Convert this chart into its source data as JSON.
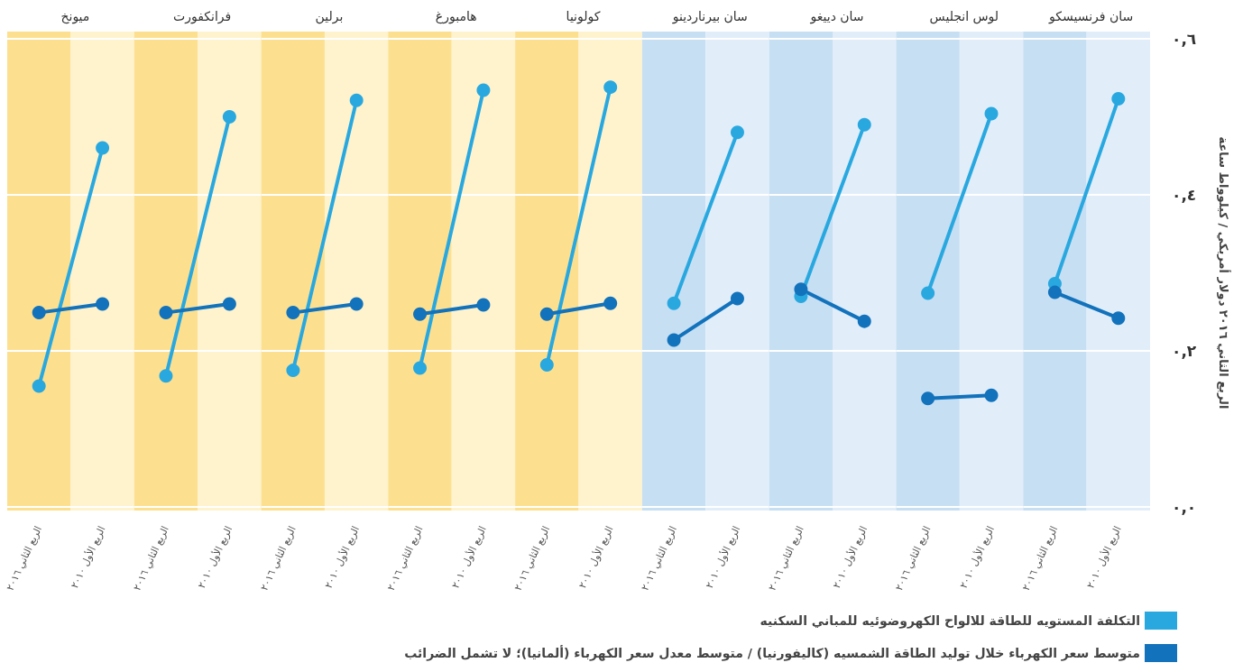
{
  "chart_data": [
    {
      "type": "line",
      "title": "ميونخ",
      "categories": [
        "الربع الثاني ٢٠١٦",
        "الربع الأول ٢٠١٠"
      ],
      "series": [
        {
          "color": "#29a8e0",
          "values": [
            0.155,
            0.46
          ]
        },
        {
          "color": "#1272bb",
          "values": [
            0.249,
            0.26
          ]
        }
      ],
      "ylim": [
        0,
        0.6
      ],
      "yticks": [
        0,
        0.2,
        0.4,
        0.6
      ],
      "tick_labels": "x",
      "grid": "y",
      "marker": "circle",
      "legend": false,
      "bands": [
        {
          "axis": "x",
          "from": "الربع الثاني ٢٠١٦",
          "to": "الربع الثاني ٢٠١٦",
          "color": "#fde08f"
        },
        {
          "axis": "x",
          "from": "الربع الأول ٢٠١٠",
          "to": "الربع الأول ٢٠١٠",
          "color": "#fef3cd"
        }
      ]
    },
    {
      "type": "line",
      "title": "فرانكفورت",
      "categories": [
        "الربع الثاني ٢٠١٦",
        "الربع الأول ٢٠١٠"
      ],
      "series": [
        {
          "color": "#29a8e0",
          "values": [
            0.168,
            0.5
          ]
        },
        {
          "color": "#1272bb",
          "values": [
            0.249,
            0.26
          ]
        }
      ],
      "ylim": [
        0,
        0.6
      ],
      "yticks": [
        0,
        0.2,
        0.4,
        0.6
      ],
      "tick_labels": "x",
      "grid": "y",
      "marker": "circle",
      "legend": false,
      "bands": [
        {
          "axis": "x",
          "from": "الربع الثاني ٢٠١٦",
          "to": "الربع الثاني ٢٠١٦",
          "color": "#fde08f"
        },
        {
          "axis": "x",
          "from": "الربع الأول ٢٠١٠",
          "to": "الربع الأول ٢٠١٠",
          "color": "#fef3cd"
        }
      ]
    },
    {
      "type": "line",
      "title": "برلين",
      "categories": [
        "الربع الثاني ٢٠١٦",
        "الربع الأول ٢٠١٠"
      ],
      "series": [
        {
          "color": "#29a8e0",
          "values": [
            0.175,
            0.521
          ]
        },
        {
          "color": "#1272bb",
          "values": [
            0.249,
            0.26
          ]
        }
      ],
      "ylim": [
        0,
        0.6
      ],
      "yticks": [
        0,
        0.2,
        0.4,
        0.6
      ],
      "tick_labels": "x",
      "grid": "y",
      "marker": "circle",
      "legend": false,
      "bands": [
        {
          "axis": "x",
          "from": "الربع الثاني ٢٠١٦",
          "to": "الربع الثاني ٢٠١٦",
          "color": "#fde08f"
        },
        {
          "axis": "x",
          "from": "الربع الأول ٢٠١٠",
          "to": "الربع الأول ٢٠١٠",
          "color": "#fef3cd"
        }
      ]
    },
    {
      "type": "line",
      "title": "هامبورغ",
      "categories": [
        "الربع الثاني ٢٠١٦",
        "الربع الأول ٢٠١٠"
      ],
      "series": [
        {
          "color": "#29a8e0",
          "values": [
            0.178,
            0.534
          ]
        },
        {
          "color": "#1272bb",
          "values": [
            0.247,
            0.259
          ]
        }
      ],
      "ylim": [
        0,
        0.6
      ],
      "yticks": [
        0,
        0.2,
        0.4,
        0.6
      ],
      "tick_labels": "x",
      "grid": "y",
      "marker": "circle",
      "legend": false,
      "bands": [
        {
          "axis": "x",
          "from": "الربع الثاني ٢٠١٦",
          "to": "الربع الثاني ٢٠١٦",
          "color": "#fde08f"
        },
        {
          "axis": "x",
          "from": "الربع الأول ٢٠١٠",
          "to": "الربع الأول ٢٠١٠",
          "color": "#fef3cd"
        }
      ]
    },
    {
      "type": "line",
      "title": "كولونيا",
      "categories": [
        "الربع الثاني ٢٠١٦",
        "الربع الأول ٢٠١٠"
      ],
      "series": [
        {
          "color": "#29a8e0",
          "values": [
            0.182,
            0.538
          ]
        },
        {
          "color": "#1272bb",
          "values": [
            0.247,
            0.261
          ]
        }
      ],
      "ylim": [
        0,
        0.6
      ],
      "yticks": [
        0,
        0.2,
        0.4,
        0.6
      ],
      "tick_labels": "x",
      "grid": "y",
      "marker": "circle",
      "legend": false,
      "bands": [
        {
          "axis": "x",
          "from": "الربع الثاني ٢٠١٦",
          "to": "الربع الثاني ٢٠١٦",
          "color": "#fde08f"
        },
        {
          "axis": "x",
          "from": "الربع الأول ٢٠١٠",
          "to": "الربع الأول ٢٠١٠",
          "color": "#fef3cd"
        }
      ]
    },
    {
      "type": "line",
      "title": "سان بيرناردينو",
      "categories": [
        "الربع الثاني ٢٠١٦",
        "الربع الأول ٢٠١٠"
      ],
      "series": [
        {
          "color": "#29a8e0",
          "values": [
            0.261,
            0.48
          ]
        },
        {
          "color": "#1272bb",
          "values": [
            0.214,
            0.267
          ]
        }
      ],
      "ylim": [
        0,
        0.6
      ],
      "yticks": [
        0,
        0.2,
        0.4,
        0.6
      ],
      "tick_labels": "x",
      "grid": "y",
      "marker": "circle",
      "legend": false,
      "bands": [
        {
          "axis": "x",
          "from": "الربع الثاني ٢٠١٦",
          "to": "الربع الثاني ٢٠١٦",
          "color": "#c6dff3"
        },
        {
          "axis": "x",
          "from": "الربع الأول ٢٠١٠",
          "to": "الربع الأول ٢٠١٠",
          "color": "#e1eefa"
        }
      ]
    },
    {
      "type": "line",
      "title": "سان دييغو",
      "categories": [
        "الربع الثاني ٢٠١٦",
        "الربع الأول ٢٠١٠"
      ],
      "series": [
        {
          "color": "#29a8e0",
          "values": [
            0.27,
            0.49
          ]
        },
        {
          "color": "#1272bb",
          "values": [
            0.279,
            0.238
          ]
        }
      ],
      "ylim": [
        0,
        0.6
      ],
      "yticks": [
        0,
        0.2,
        0.4,
        0.6
      ],
      "tick_labels": "x",
      "grid": "y",
      "marker": "circle",
      "legend": false,
      "bands": [
        {
          "axis": "x",
          "from": "الربع الثاني ٢٠١٦",
          "to": "الربع الثاني ٢٠١٦",
          "color": "#c6dff3"
        },
        {
          "axis": "x",
          "from": "الربع الأول ٢٠١٠",
          "to": "الربع الأول ٢٠١٠",
          "color": "#e1eefa"
        }
      ]
    },
    {
      "type": "line",
      "title": "لوس انجليس",
      "categories": [
        "الربع الثاني ٢٠١٦",
        "الربع الأول ٢٠١٠"
      ],
      "series": [
        {
          "color": "#29a8e0",
          "values": [
            0.274,
            0.504
          ]
        },
        {
          "color": "#1272bb",
          "values": [
            0.139,
            0.143
          ]
        }
      ],
      "ylim": [
        0,
        0.6
      ],
      "yticks": [
        0,
        0.2,
        0.4,
        0.6
      ],
      "tick_labels": "x",
      "grid": "y",
      "marker": "circle",
      "legend": false,
      "bands": [
        {
          "axis": "x",
          "from": "الربع الثاني ٢٠١٦",
          "to": "الربع الثاني ٢٠١٦",
          "color": "#c6dff3"
        },
        {
          "axis": "x",
          "from": "الربع الأول ٢٠١٠",
          "to": "الربع الأول ٢٠١٠",
          "color": "#e1eefa"
        }
      ]
    },
    {
      "type": "line",
      "title": "سان فرنسيسكو",
      "ylabel": "الربع الثاني ٢٠١٦ دولار أمريكي / كيلوواط ساعة",
      "categories": [
        "الربع الثاني ٢٠١٦",
        "الربع الأول ٢٠١٠"
      ],
      "series": [
        {
          "name": "التكلفة المستويه للطاقة للالواح الكهروضوئيه للمباني السكنيه",
          "color": "#29a8e0",
          "values": [
            0.286,
            0.523
          ]
        },
        {
          "name": "متوسط سعر الكهرباء خلال توليد الطاقة الشمسيه (كاليفورنيا) / متوسط معدل سعر الكهرباء (ألمانيا)؛ لا تشمل الضرائب",
          "color": "#1272bb",
          "values": [
            0.275,
            0.242
          ]
        }
      ],
      "ylim": [
        0,
        0.6
      ],
      "yticks": [
        {
          "value": 0,
          "label": "٠,٠"
        },
        {
          "value": 0.2,
          "label": "٠,٢"
        },
        {
          "value": 0.4,
          "label": "٠,٤"
        },
        {
          "value": 0.6,
          "label": "٠,٦"
        }
      ],
      "grid": "y",
      "marker": "circle",
      "legend": "bottom",
      "bands": [
        {
          "axis": "x",
          "from": "الربع الثاني ٢٠١٦",
          "to": "الربع الثاني ٢٠١٦",
          "color": "#c6dff3"
        },
        {
          "axis": "x",
          "from": "الربع الأول ٢٠١٠",
          "to": "الربع الأول ٢٠١٠",
          "color": "#e1eefa"
        }
      ]
    }
  ]
}
